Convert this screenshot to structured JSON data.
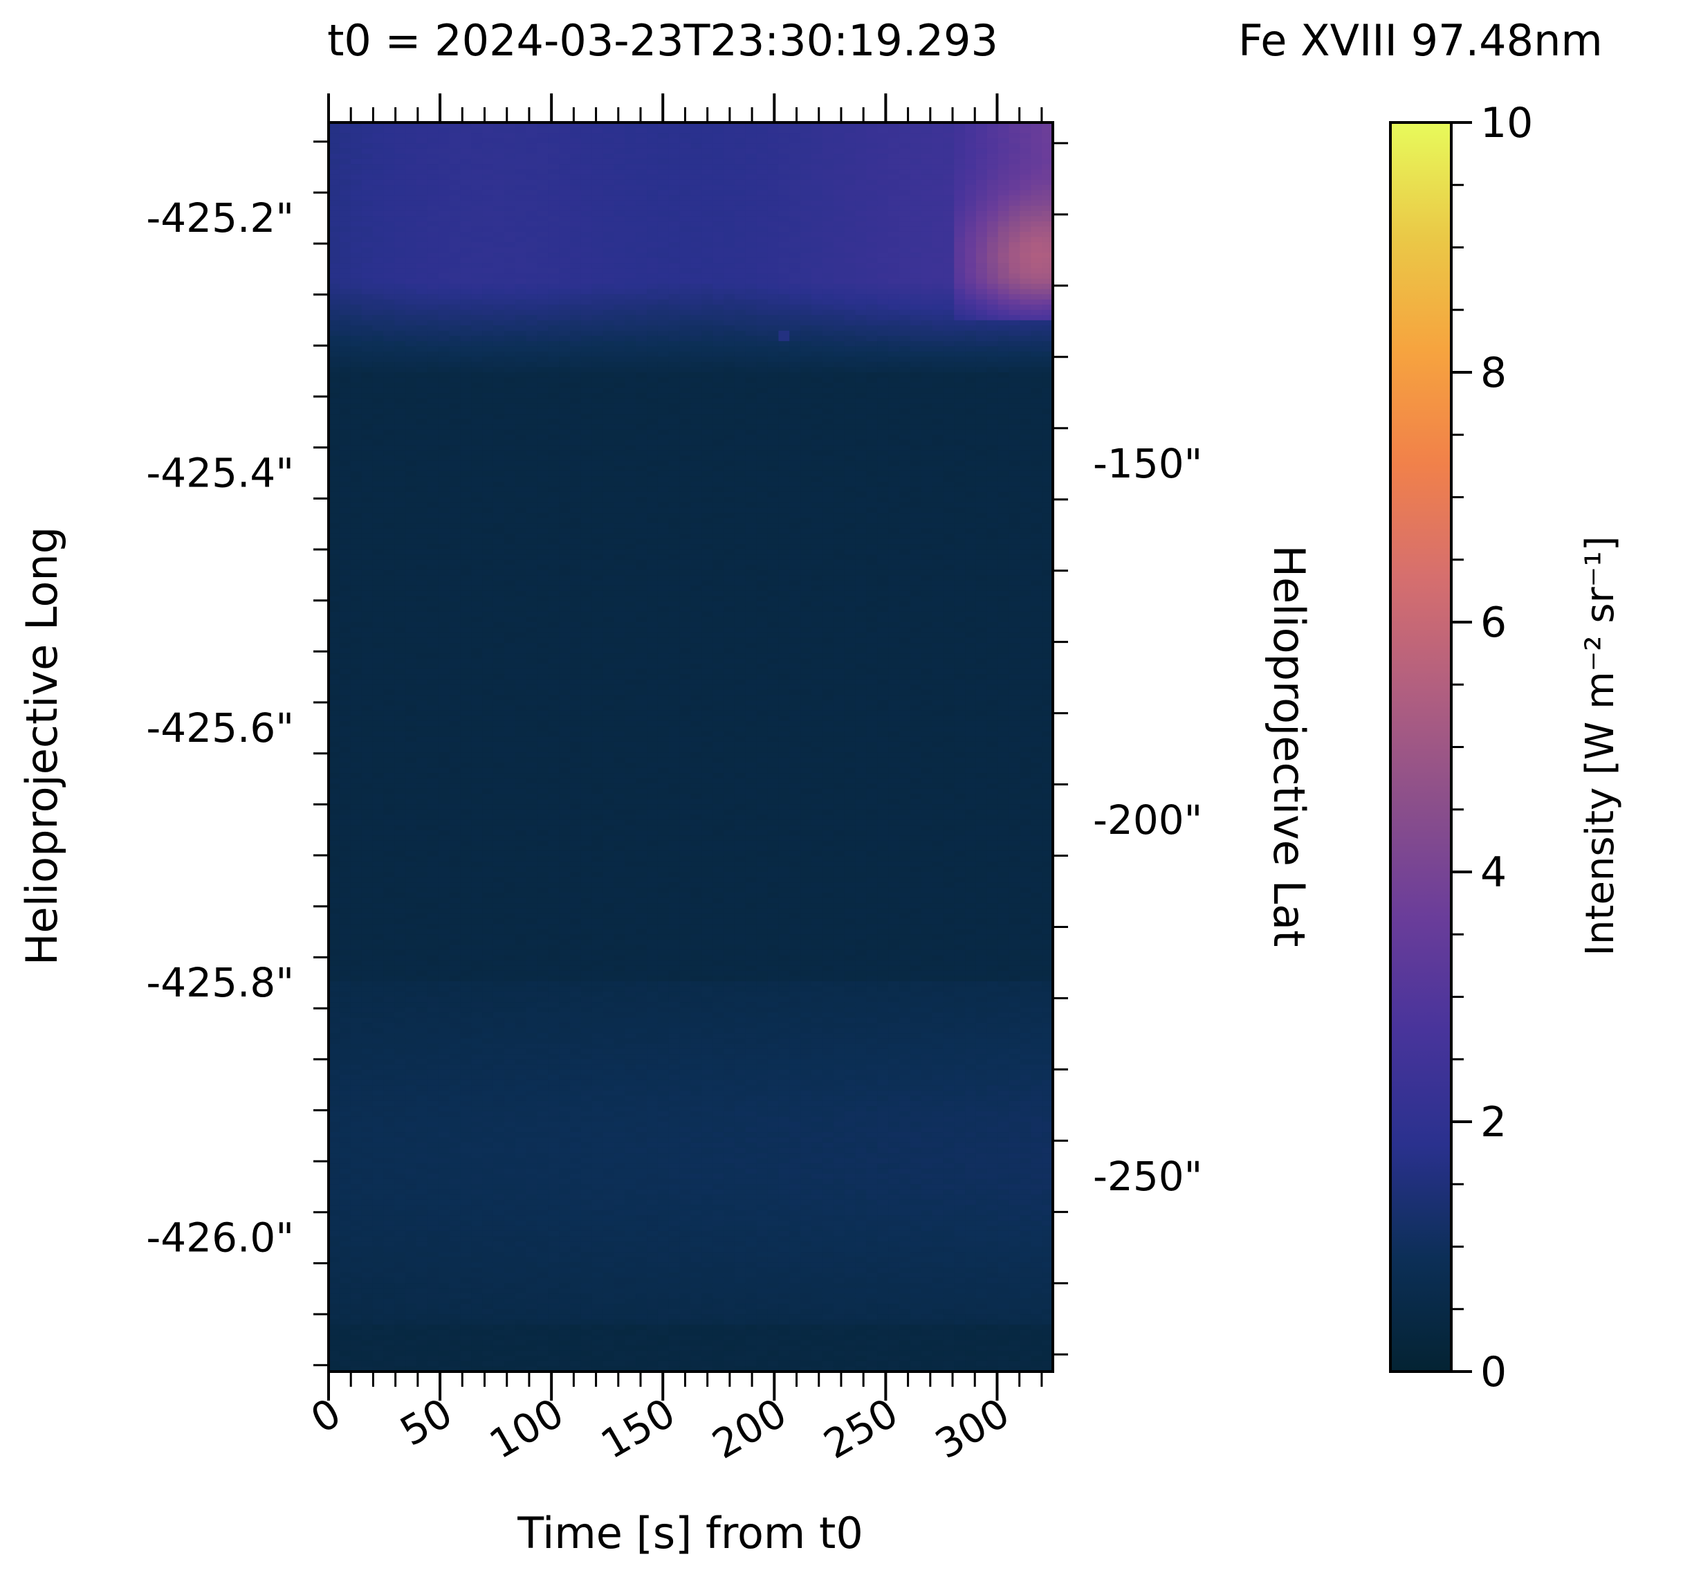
{
  "chart_data": {
    "type": "heatmap",
    "title_left": "t0 = 2024-03-23T23:30:19.293",
    "title_right": "Fe XVIII 97.48nm",
    "xlabel": "Time [s] from t0",
    "ylabel_left": "Helioprojective Long",
    "ylabel_right": "Helioprojective Lat",
    "colorbar_label": "Intensity [W m⁻² sr⁻¹]",
    "xlim": [
      0,
      325
    ],
    "x_ticks": [
      {
        "value": 0,
        "label": "0"
      },
      {
        "value": 50,
        "label": "50"
      },
      {
        "value": 100,
        "label": "100"
      },
      {
        "value": 150,
        "label": "150"
      },
      {
        "value": 200,
        "label": "200"
      },
      {
        "value": 250,
        "label": "250"
      },
      {
        "value": 300,
        "label": "300"
      }
    ],
    "left_ylim": [
      -426.105,
      -425.125
    ],
    "left_y_ticks": [
      {
        "value": -425.2,
        "label": "-425.2\""
      },
      {
        "value": -425.4,
        "label": "-425.4\""
      },
      {
        "value": -425.6,
        "label": "-425.6\""
      },
      {
        "value": -425.8,
        "label": "-425.8\""
      },
      {
        "value": -426.0,
        "label": "-426.0\""
      }
    ],
    "right_ylim": [
      -277.4,
      -102.1
    ],
    "right_y_ticks": [
      {
        "value": -150,
        "label": "-150\""
      },
      {
        "value": -200,
        "label": "-200\""
      },
      {
        "value": -250,
        "label": "-250\""
      }
    ],
    "colorbar_range": [
      0,
      10
    ],
    "colorbar_ticks": [
      {
        "value": 0,
        "label": "0"
      },
      {
        "value": 2,
        "label": "2"
      },
      {
        "value": 4,
        "label": "4"
      },
      {
        "value": 6,
        "label": "6"
      },
      {
        "value": 8,
        "label": "8"
      },
      {
        "value": 10,
        "label": "10"
      }
    ],
    "colormap": [
      "#042333",
      "#0c2f57",
      "#2a318e",
      "#48349b",
      "#6a3d9a",
      "#8b4f8b",
      "#b15f80",
      "#d66f6e",
      "#f1814a",
      "#f6a43f",
      "#eac947",
      "#e8fa5b"
    ],
    "intensity_profile_description_values": {
      "background": 0.45,
      "upper_band_rows": [
        0,
        50
      ],
      "upper_band_peak": 4.5,
      "lower_band_rows": [
        180,
        225
      ],
      "lower_band_peak": 1.15
    }
  }
}
